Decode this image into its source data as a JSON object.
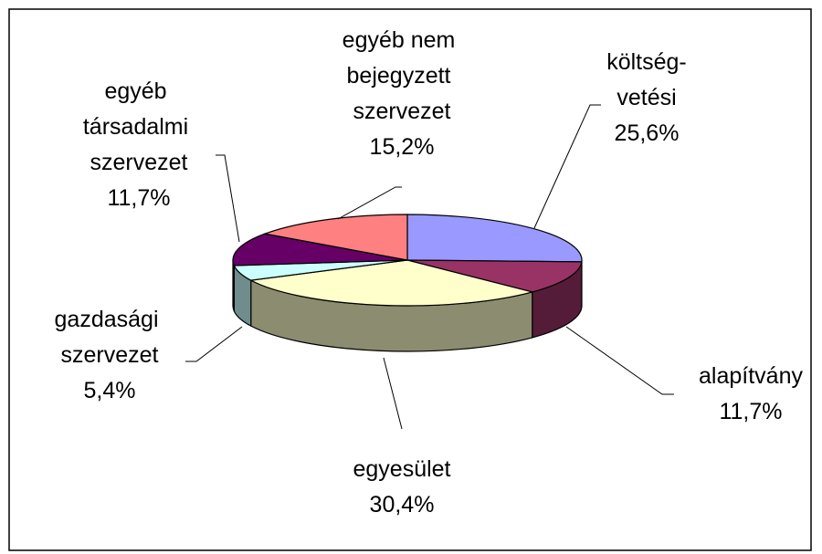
{
  "chart_data": {
    "type": "pie3d",
    "categories": [
      "költség-vetési",
      "alapítvány",
      "egyesület",
      "gazdasági szervezet",
      "egyéb társadalmi szervezet",
      "egyéb nem bejegyzett szervezet"
    ],
    "values": [
      25.6,
      11.7,
      30.4,
      5.4,
      11.7,
      15.2
    ],
    "value_labels": [
      "25,6%",
      "11,7%",
      "30,4%",
      "5,4%",
      "11,7%",
      "15,2%"
    ],
    "colors": [
      "#9999ff",
      "#993366",
      "#ffffcc",
      "#ccffff",
      "#660066",
      "#ff8080"
    ]
  }
}
